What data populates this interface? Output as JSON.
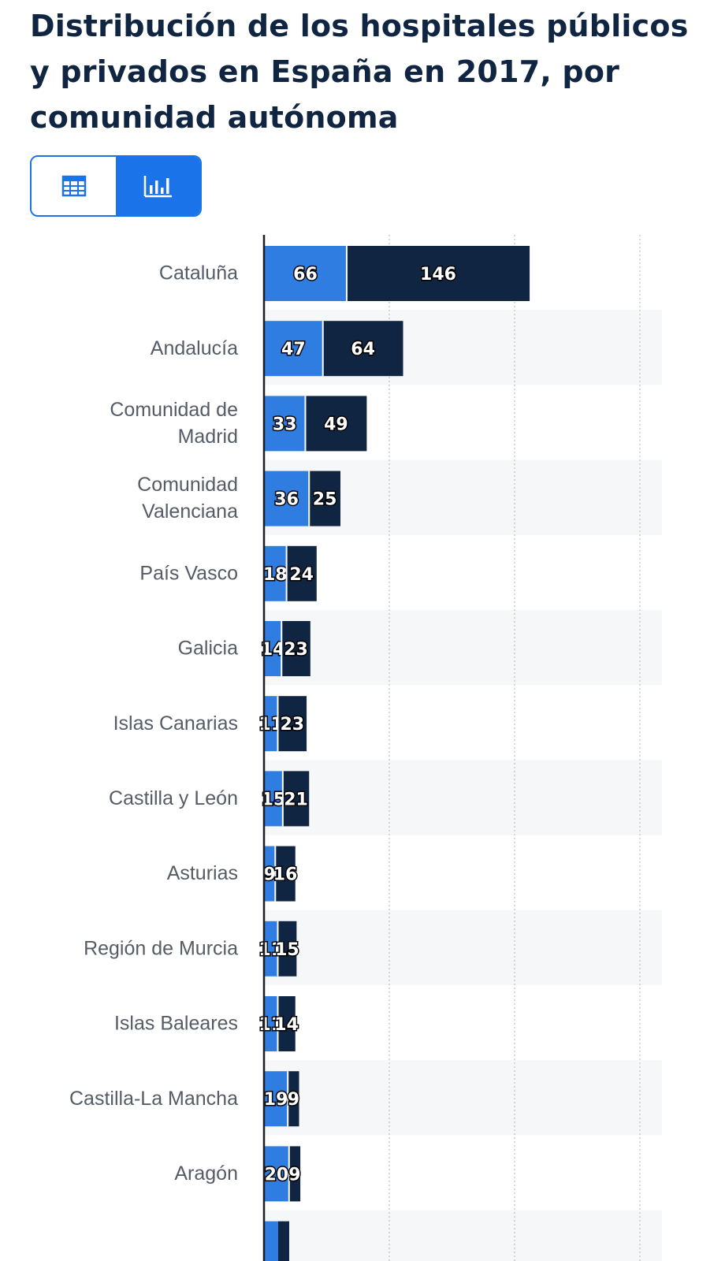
{
  "header": {
    "title": "Distribución de los hospitales públicos y privados en España en 2017, por comunidad autónoma"
  },
  "view_toggle": {
    "table_icon": "table-grid-icon",
    "chart_icon": "bar-chart-icon",
    "active": "chart",
    "active_color": "#1a73e8"
  },
  "chart_data": {
    "type": "bar",
    "orientation": "horizontal",
    "stacked": true,
    "categories": [
      [
        "Cataluña"
      ],
      [
        "Andalucía"
      ],
      [
        "Comunidad de",
        "Madrid"
      ],
      [
        "Comunidad",
        "Valenciana"
      ],
      [
        "País Vasco"
      ],
      [
        "Galicia"
      ],
      [
        "Islas Canarias"
      ],
      [
        "Castilla y León"
      ],
      [
        "Asturias"
      ],
      [
        "Región de Murcia"
      ],
      [
        "Islas Baleares"
      ],
      [
        "Castilla-La Mancha"
      ],
      [
        "Aragón"
      ]
    ],
    "series": [
      {
        "values": [
          66,
          47,
          33,
          36,
          18,
          14,
          11,
          15,
          9,
          11,
          11,
          19,
          20
        ],
        "color": "#2f7de1"
      },
      {
        "values": [
          146,
          64,
          49,
          25,
          24,
          23,
          23,
          21,
          16,
          15,
          14,
          9,
          9
        ],
        "color": "#0f2541"
      }
    ],
    "xlim": [
      0,
      300
    ],
    "gridlines_x": [
      100,
      200,
      300
    ],
    "grid": true,
    "row_stripes": true
  }
}
